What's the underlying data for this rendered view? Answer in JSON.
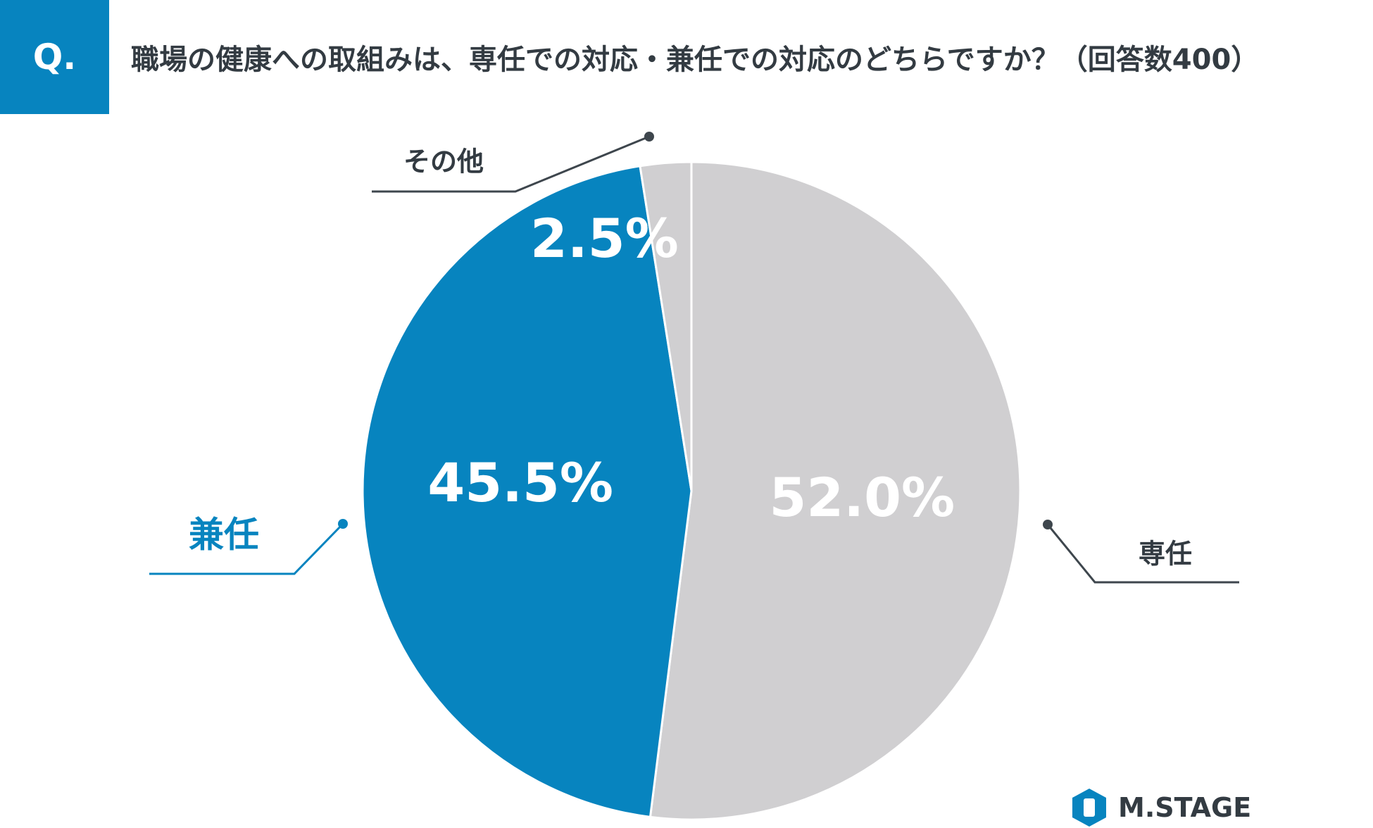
{
  "header": {
    "badge": "Q.",
    "question": "職場の健康への取組みは、専任での対応・兼任での対応のどちらですか？（回答数400）"
  },
  "chart_data": {
    "type": "pie",
    "title": "職場の健康への取組みは、専任での対応・兼任での対応のどちらですか？（回答数400）",
    "slices": [
      {
        "name": "専任",
        "value": 52.0,
        "label": "52.0%",
        "color": "#d0cfd1",
        "label_color": "#ffffff",
        "name_color": "#333b42"
      },
      {
        "name": "兼任",
        "value": 45.5,
        "label": "45.5%",
        "color": "#0784bf",
        "label_color": "#ffffff",
        "name_color": "#0784bf"
      },
      {
        "name": "その他",
        "value": 2.5,
        "label": "2.5%",
        "color": "#d0cfd1",
        "label_color": "#ffffff",
        "name_color": "#333b42"
      }
    ]
  },
  "logo": {
    "text": "M.STAGE",
    "icon": "m-stage-logo-icon",
    "color": "#0784bf"
  }
}
